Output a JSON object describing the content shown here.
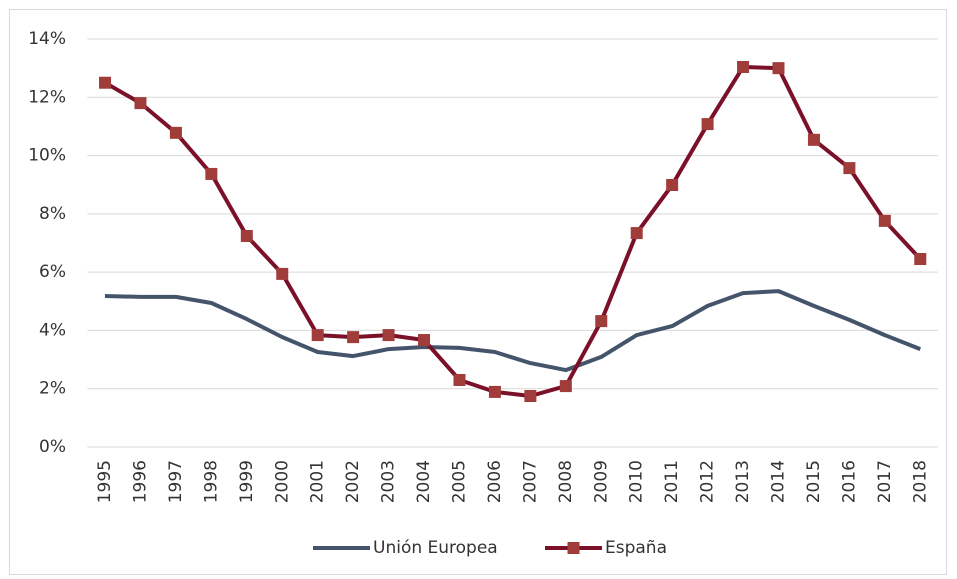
{
  "chart_data": {
    "type": "line",
    "categories": [
      "1995",
      "1996",
      "1997",
      "1998",
      "1999",
      "2000",
      "2001",
      "2002",
      "2003",
      "2004",
      "2005",
      "2006",
      "2007",
      "2008",
      "2009",
      "2010",
      "2011",
      "2012",
      "2013",
      "2014",
      "2015",
      "2016",
      "2017",
      "2018"
    ],
    "series": [
      {
        "name": "Unión Europea",
        "color": "#44546a",
        "values": [
          5.18,
          5.15,
          5.15,
          4.94,
          4.39,
          3.77,
          3.26,
          3.12,
          3.36,
          3.43,
          3.4,
          3.26,
          2.88,
          2.64,
          3.09,
          3.84,
          4.15,
          4.84,
          5.28,
          5.35,
          4.84,
          4.36,
          3.84,
          3.36
        ]
      },
      {
        "name": "España",
        "color": "#7b1029",
        "marker": "square",
        "marker_color": "#a03c3a",
        "values": [
          12.5,
          11.8,
          10.78,
          9.37,
          7.24,
          5.94,
          3.84,
          3.77,
          3.84,
          3.67,
          2.3,
          1.89,
          1.75,
          2.09,
          4.32,
          7.34,
          8.99,
          11.08,
          13.04,
          13.0,
          10.54,
          9.57,
          7.76,
          6.45
        ]
      }
    ],
    "ylim": [
      0,
      14
    ],
    "yticks": [
      {
        "value": 0,
        "label": "0%"
      },
      {
        "value": 2,
        "label": "2%"
      },
      {
        "value": 4,
        "label": "4%"
      },
      {
        "value": 6,
        "label": "6%"
      },
      {
        "value": 8,
        "label": "8%"
      },
      {
        "value": 10,
        "label": "10%"
      },
      {
        "value": 12,
        "label": "12%"
      },
      {
        "value": 14,
        "label": "14%"
      }
    ],
    "grid": true,
    "legend": "bottom"
  }
}
